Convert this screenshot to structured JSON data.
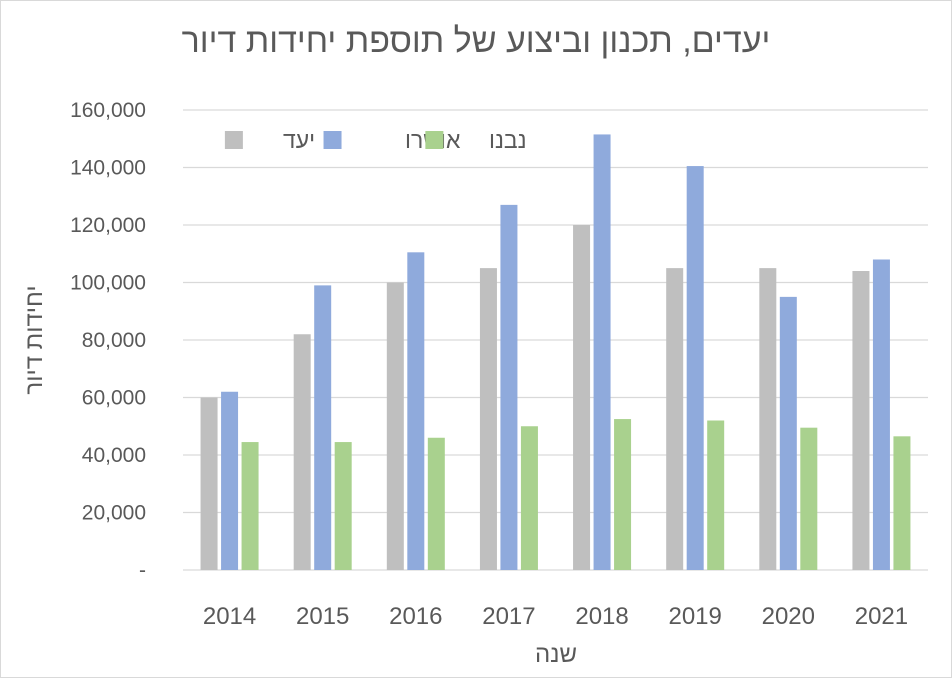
{
  "chart_data": {
    "type": "bar",
    "title": "יעדים, תכנון וביצוע של תוספת יחידות דיור",
    "xlabel": "שנה",
    "ylabel": "יחידות דיור",
    "categories": [
      "2014",
      "2015",
      "2016",
      "2017",
      "2018",
      "2019",
      "2020",
      "2021"
    ],
    "ylim": [
      0,
      160000
    ],
    "yticks": [
      0,
      20000,
      40000,
      60000,
      80000,
      100000,
      120000,
      140000,
      160000
    ],
    "ytick_labels": [
      "-",
      "20,000",
      "40,000",
      "60,000",
      "80,000",
      "100,000",
      "120,000",
      "140,000",
      "160,000"
    ],
    "grid": true,
    "legend_position": "top-left",
    "series": [
      {
        "name": "יעד",
        "color": "#bfbfbf",
        "values": [
          60000,
          82000,
          100000,
          105000,
          120000,
          105000,
          105000,
          104000
        ]
      },
      {
        "name": "אושרו",
        "color": "#8faadc",
        "values": [
          62000,
          99000,
          110500,
          127000,
          151500,
          140500,
          95000,
          108000
        ]
      },
      {
        "name": "נבנו",
        "color": "#a9d18e",
        "values": [
          44500,
          44500,
          46000,
          50000,
          52500,
          52000,
          49500,
          46500
        ]
      }
    ]
  }
}
